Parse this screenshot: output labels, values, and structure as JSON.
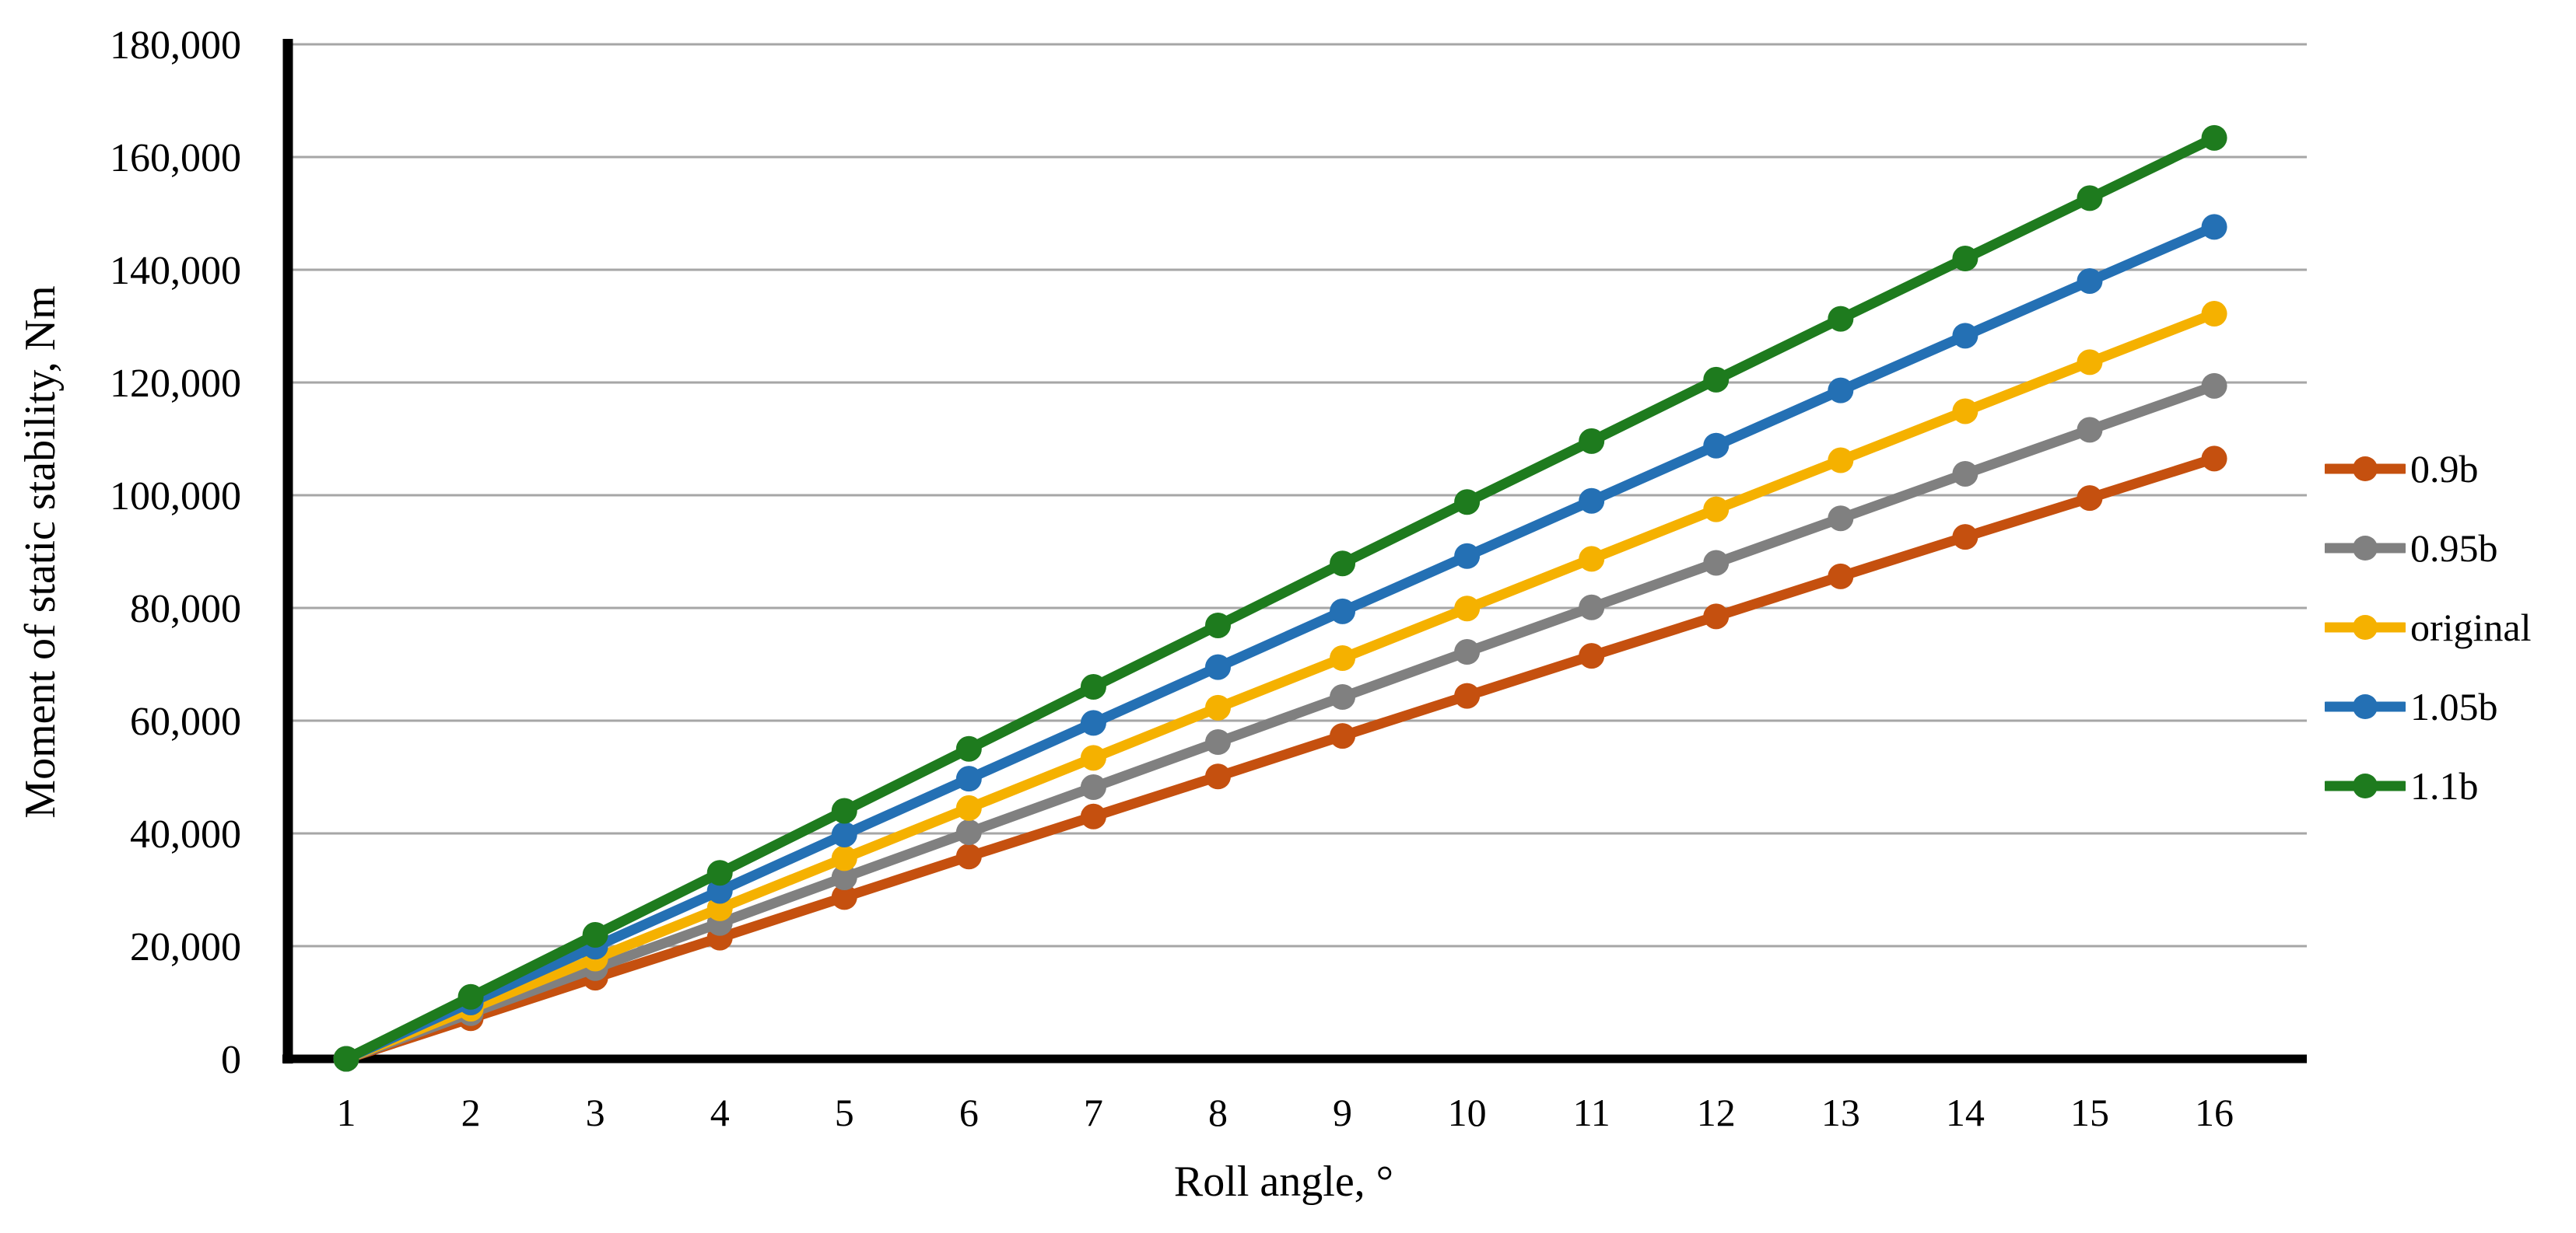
{
  "figure": {
    "background_color": "#FFFFFF",
    "axis_color": "#000000",
    "gridline_color": "#A6A6A6"
  },
  "chart_data": {
    "type": "line",
    "title": "",
    "xlabel": "Roll angle, °",
    "ylabel": "Moment of static stability, Nm",
    "x_categories": [
      "1",
      "2",
      "3",
      "4",
      "5",
      "6",
      "7",
      "8",
      "9",
      "10",
      "11",
      "12",
      "13",
      "14",
      "15",
      "16"
    ],
    "y_ticks": [
      0,
      20000,
      40000,
      60000,
      80000,
      100000,
      120000,
      140000,
      160000,
      180000
    ],
    "y_tick_labels": [
      "0",
      "20,000",
      "40,000",
      "60,000",
      "80,000",
      "100,000",
      "120,000",
      "140,000",
      "160,000",
      "180,000"
    ],
    "ylim": [
      0,
      180000
    ],
    "grid": "horizontal",
    "legend_position": "right",
    "marker": "circle",
    "series": [
      {
        "name": "0.9b",
        "color": "#C5500F",
        "values": [
          0,
          7200,
          14400,
          21500,
          28700,
          35900,
          43000,
          50100,
          57300,
          64400,
          71500,
          78500,
          85600,
          92600,
          99500,
          106500
        ]
      },
      {
        "name": "0.95b",
        "color": "#808080",
        "values": [
          0,
          8100,
          16100,
          24100,
          32200,
          40200,
          48200,
          56200,
          64200,
          72200,
          80100,
          88000,
          95900,
          103800,
          111600,
          119400
        ]
      },
      {
        "name": "original",
        "color": "#F5B100",
        "values": [
          0,
          8900,
          17800,
          26700,
          35600,
          44500,
          53400,
          62300,
          71100,
          79900,
          88700,
          97500,
          106200,
          114900,
          123600,
          132200
        ]
      },
      {
        "name": "1.05b",
        "color": "#2470B4",
        "values": [
          0,
          10000,
          19900,
          29800,
          39800,
          49700,
          59600,
          69500,
          79400,
          89200,
          99000,
          108800,
          118600,
          128300,
          138000,
          147600
        ]
      },
      {
        "name": "1.1b",
        "color": "#1E7B1E",
        "values": [
          0,
          11000,
          22000,
          33000,
          44000,
          55000,
          66000,
          76900,
          87900,
          98800,
          109600,
          120500,
          131300,
          142000,
          152700,
          163400
        ]
      }
    ]
  }
}
